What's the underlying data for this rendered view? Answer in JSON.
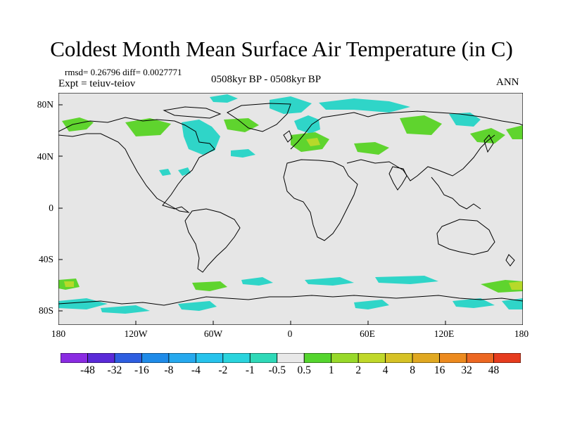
{
  "title": "Coldest Month Mean Surface Air Temperature (in C)",
  "stats": {
    "rmsd_diff": "rmsd= 0.26796 diff= 0.0027771"
  },
  "expt": "Expt = teiuv-teiov",
  "center_label": "0508kyr BP - 0508kyr BP",
  "season": "ANN",
  "lat_labels": [
    "80N",
    "40N",
    "0",
    "40S",
    "80S"
  ],
  "lon_labels": [
    "180",
    "120W",
    "60W",
    "0",
    "60E",
    "120E",
    "180"
  ],
  "colorbar": {
    "colors": [
      "#8a2be2",
      "#5a2ad8",
      "#2e5ee0",
      "#1f8be8",
      "#26a9ee",
      "#27c3ec",
      "#2ad4dd",
      "#2fd9b8",
      "#e8e8e8",
      "#55d52e",
      "#98d92a",
      "#c0d82a",
      "#d6c226",
      "#e0a821",
      "#ec8a1e",
      "#ec6722",
      "#e63c1e"
    ],
    "labels": [
      "-48",
      "-32",
      "-16",
      "-8",
      "-4",
      "-2",
      "-1",
      "-0.5",
      "0.5",
      "1",
      "2",
      "4",
      "8",
      "16",
      "32",
      "48"
    ]
  },
  "colors": {
    "land_background": "#e6e6e6",
    "cyan": "#2fd5c8",
    "green": "#5fd42e",
    "yellowgreen": "#b6d92a"
  }
}
